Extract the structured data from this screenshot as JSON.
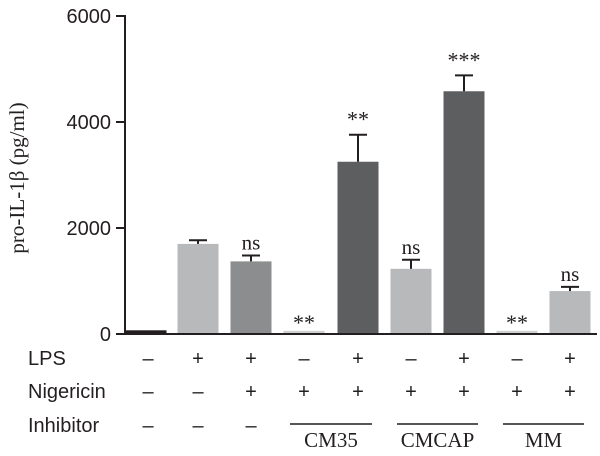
{
  "chart_data": {
    "type": "bar",
    "ylabel": "pro-IL-1β (pg/ml)",
    "ylim": [
      0,
      6000
    ],
    "yticks": [
      "0",
      "2000",
      "4000",
      "6000"
    ],
    "yticks_values": [
      0,
      2000,
      4000,
      6000
    ],
    "values": [
      70,
      1700,
      1370,
      60,
      3250,
      1230,
      4580,
      60,
      810
    ],
    "errors": [
      15,
      70,
      110,
      10,
      510,
      170,
      300,
      10,
      80
    ],
    "bar_colors": [
      "#231f20",
      "#b8b9bb",
      "#8c8d8f",
      "#cfd0d2",
      "#5d5e60",
      "#b8b9bb",
      "#5d5e60",
      "#cfd0d2",
      "#b8b9bb"
    ],
    "annotations": [
      "",
      "",
      "ns",
      "**",
      "**",
      "ns",
      "***",
      "**",
      "ns"
    ],
    "conditions": [
      {
        "label": "LPS",
        "signs": [
          "–",
          "+",
          "+",
          "–",
          "+",
          "–",
          "+",
          "–",
          "+"
        ]
      },
      {
        "label": "Nigericin",
        "signs": [
          "–",
          "–",
          "+",
          "+",
          "+",
          "+",
          "+",
          "+",
          "+"
        ]
      },
      {
        "label": "Inhibitor",
        "signs": [
          "–",
          "–",
          "–",
          "",
          "",
          "",
          "",
          "",
          ""
        ]
      }
    ],
    "inhibitor_groups": [
      {
        "label": "CM35",
        "bars": [
          3,
          4
        ]
      },
      {
        "label": "CMCAP",
        "bars": [
          5,
          6
        ]
      },
      {
        "label": "MM",
        "bars": [
          7,
          8
        ]
      }
    ]
  }
}
